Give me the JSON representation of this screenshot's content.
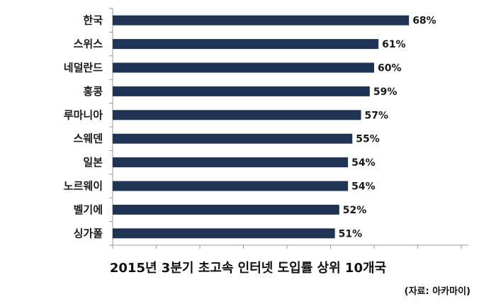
{
  "chart_data": {
    "type": "bar",
    "orientation": "horizontal",
    "title": "2015년 3분기 초고속 인터넷 도입률 상위 10개국",
    "source": "(자료: 아카마이)",
    "categories": [
      "한국",
      "스위스",
      "네덜란드",
      "홍콩",
      "루마니아",
      "스웨덴",
      "일본",
      "노르웨이",
      "벨기에",
      "싱가폴"
    ],
    "values": [
      68,
      61,
      60,
      59,
      57,
      55,
      54,
      54,
      52,
      51
    ],
    "value_labels": [
      "68%",
      "61%",
      "60%",
      "59%",
      "57%",
      "55%",
      "54%",
      "54%",
      "52%",
      "51%"
    ],
    "xlim": [
      0,
      80
    ],
    "bar_color": "#1f3354",
    "grid": false,
    "legend": "none"
  }
}
